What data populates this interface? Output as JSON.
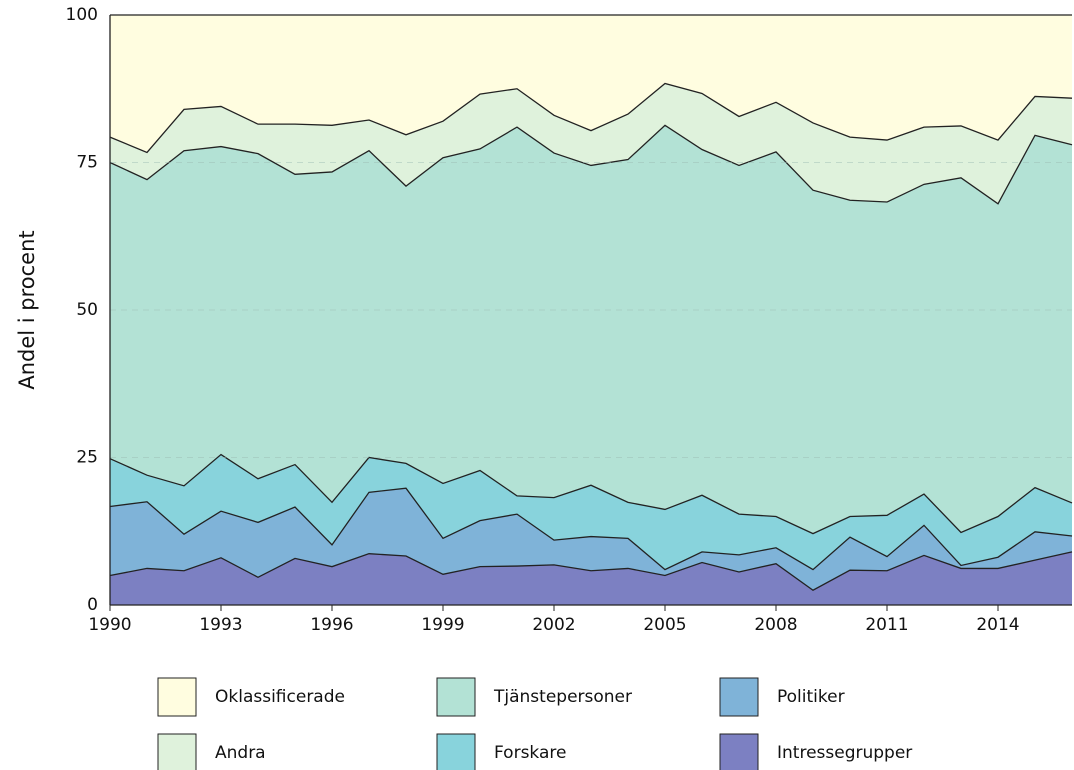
{
  "chart_data": {
    "type": "stacked_area",
    "y_label": "Andel i procent",
    "x": [
      1990,
      1991,
      1992,
      1993,
      1994,
      1995,
      1996,
      1997,
      1998,
      1999,
      2000,
      2001,
      2002,
      2003,
      2004,
      2005,
      2006,
      2007,
      2008,
      2009,
      2010,
      2011,
      2012,
      2013,
      2014,
      2015,
      2016
    ],
    "xlim": [
      1990,
      2016
    ],
    "xticks": [
      1990,
      1993,
      1996,
      1999,
      2002,
      2005,
      2008,
      2011,
      2014
    ],
    "ylim": [
      0,
      100
    ],
    "yticks": [
      0,
      25,
      50,
      75,
      100
    ],
    "grid": true,
    "series": [
      {
        "name": "Intressegrupper",
        "color": "#7c80c2",
        "values": [
          5,
          6.2,
          5.8,
          8,
          4.7,
          7.9,
          6.5,
          8.7,
          8.3,
          5.2,
          6.5,
          6.6,
          6.8,
          5.8,
          6.2,
          5,
          7.2,
          5.6,
          7,
          2.5,
          5.9,
          5.8,
          8.4,
          6.2,
          6.2,
          7.6,
          9
        ]
      },
      {
        "name": "Politiker",
        "color": "#7fb3d8",
        "values": [
          11.7,
          11.3,
          6.2,
          7.9,
          9.3,
          8.7,
          3.7,
          10.4,
          11.5,
          6.1,
          7.8,
          8.8,
          4.2,
          5.8,
          5.1,
          1,
          1.8,
          2.9,
          2.7,
          3.5,
          5.6,
          2.4,
          5.1,
          0.5,
          1.9,
          4.8,
          2.7
        ]
      },
      {
        "name": "Forskare",
        "color": "#88d3dc",
        "values": [
          8.1,
          4.5,
          8.2,
          9.6,
          7.4,
          7.2,
          7.2,
          5.9,
          4.2,
          9.3,
          8.5,
          3.1,
          7.2,
          8.7,
          6.1,
          10.2,
          9.6,
          6.9,
          5.3,
          6.1,
          3.5,
          7,
          5.3,
          5.6,
          6.9,
          7.5,
          5.6
        ]
      },
      {
        "name": "Tjänstepersoner",
        "color": "#b3e2d5",
        "values": [
          50.2,
          50.1,
          56.8,
          52.2,
          55.1,
          49.2,
          56,
          52,
          47,
          55.2,
          54.5,
          62.5,
          58.4,
          54.2,
          58.1,
          65.1,
          58.6,
          59.1,
          61.8,
          58.2,
          53.6,
          53.1,
          52.5,
          60.1,
          53,
          59.7,
          60.7
        ]
      },
      {
        "name": "Andra",
        "color": "#dff2dc",
        "values": [
          4.3,
          4.6,
          7,
          6.8,
          5,
          8.5,
          7.9,
          5.2,
          8.7,
          6.2,
          9.3,
          6.5,
          6.4,
          5.9,
          7.7,
          7.1,
          9.5,
          8.3,
          8.4,
          11.4,
          10.7,
          10.5,
          9.7,
          8.8,
          10.8,
          6.6,
          7.9
        ]
      },
      {
        "name": "Oklassificerade",
        "color": "#fffde0",
        "values": [
          20.7,
          23.3,
          16,
          15.5,
          18.5,
          18.5,
          18.7,
          17.8,
          20.3,
          18,
          13.4,
          12.5,
          17,
          19.6,
          16.8,
          11.6,
          13.3,
          17.2,
          14.8,
          18.3,
          20.7,
          21.2,
          19,
          18.8,
          21.2,
          13.8,
          14.1
        ]
      }
    ]
  }
}
